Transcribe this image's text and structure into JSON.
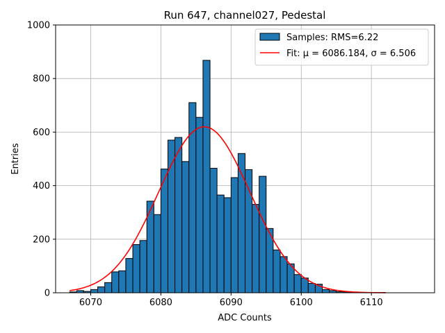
{
  "chart_data": {
    "type": "bar",
    "title": "Run 647, channel027, Pedestal",
    "xlabel": "ADC Counts",
    "ylabel": "Entries",
    "xlim": [
      6065,
      6119
    ],
    "ylim": [
      0,
      1000
    ],
    "xticks": [
      6070,
      6080,
      6090,
      6100,
      6110
    ],
    "yticks": [
      0,
      200,
      400,
      600,
      800,
      1000
    ],
    "grid": true,
    "legend_position": "top-right",
    "colors": {
      "bars": "#1f77b4",
      "bar_edge": "#000000",
      "fit": "#ff0000",
      "grid": "#b0b0b0"
    },
    "histogram": {
      "name": "Samples: RMS=6.22",
      "bin_width": 1,
      "bin_starts": [
        6067,
        6068,
        6069,
        6070,
        6071,
        6072,
        6073,
        6074,
        6075,
        6076,
        6077,
        6078,
        6079,
        6080,
        6081,
        6082,
        6083,
        6084,
        6085,
        6086,
        6087,
        6088,
        6089,
        6090,
        6091,
        6092,
        6093,
        6094,
        6095,
        6096,
        6097,
        6098,
        6099,
        6100,
        6101,
        6102,
        6103,
        6104,
        6105,
        6106,
        6107,
        6108,
        6109,
        6110,
        6111
      ],
      "counts": [
        3,
        8,
        5,
        12,
        22,
        38,
        78,
        82,
        128,
        180,
        195,
        342,
        292,
        462,
        570,
        580,
        490,
        710,
        655,
        868,
        465,
        365,
        355,
        430,
        520,
        460,
        330,
        435,
        240,
        160,
        135,
        108,
        68,
        55,
        35,
        32,
        12,
        8,
        4,
        3,
        2,
        1,
        1,
        1,
        1
      ]
    },
    "fit": {
      "name": "Fit: μ = 6086.184, σ = 6.506",
      "legend_prefix": "Fit: ",
      "mu_label": "μ = 6086.184",
      "sigma_label": "σ = 6.506",
      "sep": ", ",
      "mu": 6086.184,
      "sigma": 6.506,
      "amplitude": 620,
      "x_range": [
        6067,
        6112
      ]
    }
  }
}
